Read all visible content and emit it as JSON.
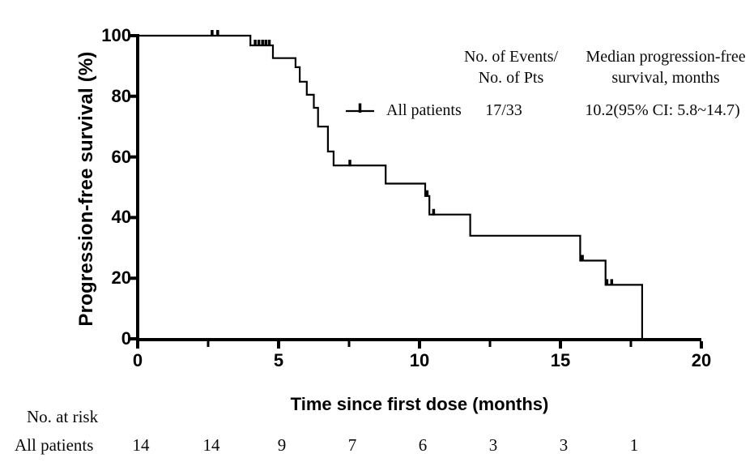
{
  "figure": {
    "background": "#ffffff",
    "ink_color": "#000000"
  },
  "chart_data": {
    "type": "line",
    "subtype": "kaplan_meier_step",
    "title": "",
    "xlabel": "Time since first dose (months)",
    "ylabel": "Progression-free survival (%)",
    "xlim": [
      0,
      20
    ],
    "ylim": [
      0,
      100
    ],
    "x_major_ticks": [
      0,
      5,
      10,
      15,
      20
    ],
    "x_minor_ticks": [
      2.5,
      7.5,
      12.5,
      17.5
    ],
    "y_ticks": [
      0,
      20,
      40,
      60,
      80,
      100
    ],
    "grid": false,
    "legend_position": "upper-right-inside",
    "columns": {
      "events_header_line1": "No. of Events/",
      "events_header_line2": "No. of Pts",
      "median_header_line1": "Median progression-free",
      "median_header_line2": "survival, months"
    },
    "series": [
      {
        "name": "All patients",
        "events_over_pts": "17/33",
        "median_pfs": "10.2(95% CI: 5.8~14.7)",
        "steps": [
          [
            0,
            100
          ],
          [
            4.0,
            96.8
          ],
          [
            4.8,
            92.6
          ],
          [
            5.6,
            89.6
          ],
          [
            5.75,
            84.8
          ],
          [
            6.0,
            80.5
          ],
          [
            6.25,
            76.2
          ],
          [
            6.4,
            70.0
          ],
          [
            6.75,
            61.8
          ],
          [
            6.95,
            57.2
          ],
          [
            8.8,
            51.2
          ],
          [
            10.2,
            47.1
          ],
          [
            10.35,
            41.0
          ],
          [
            11.8,
            34.0
          ],
          [
            15.7,
            25.8
          ],
          [
            16.6,
            17.8
          ],
          [
            17.9,
            0
          ]
        ],
        "censor_marks": [
          [
            2.64,
            100
          ],
          [
            2.84,
            100
          ],
          [
            4.17,
            96.8
          ],
          [
            4.3,
            96.8
          ],
          [
            4.43,
            96.8
          ],
          [
            4.55,
            96.8
          ],
          [
            4.67,
            96.8
          ],
          [
            7.53,
            57.2
          ],
          [
            10.27,
            47.1
          ],
          [
            10.5,
            41.0
          ],
          [
            15.78,
            25.8
          ],
          [
            16.65,
            17.8
          ],
          [
            16.82,
            17.8
          ]
        ]
      }
    ],
    "at_risk_table": {
      "header": "No. at risk",
      "row_label": "All patients",
      "times": [
        0,
        2.5,
        5,
        7.5,
        10,
        12.5,
        15,
        17.5
      ],
      "counts": [
        14,
        14,
        9,
        7,
        6,
        3,
        3,
        1
      ]
    }
  }
}
